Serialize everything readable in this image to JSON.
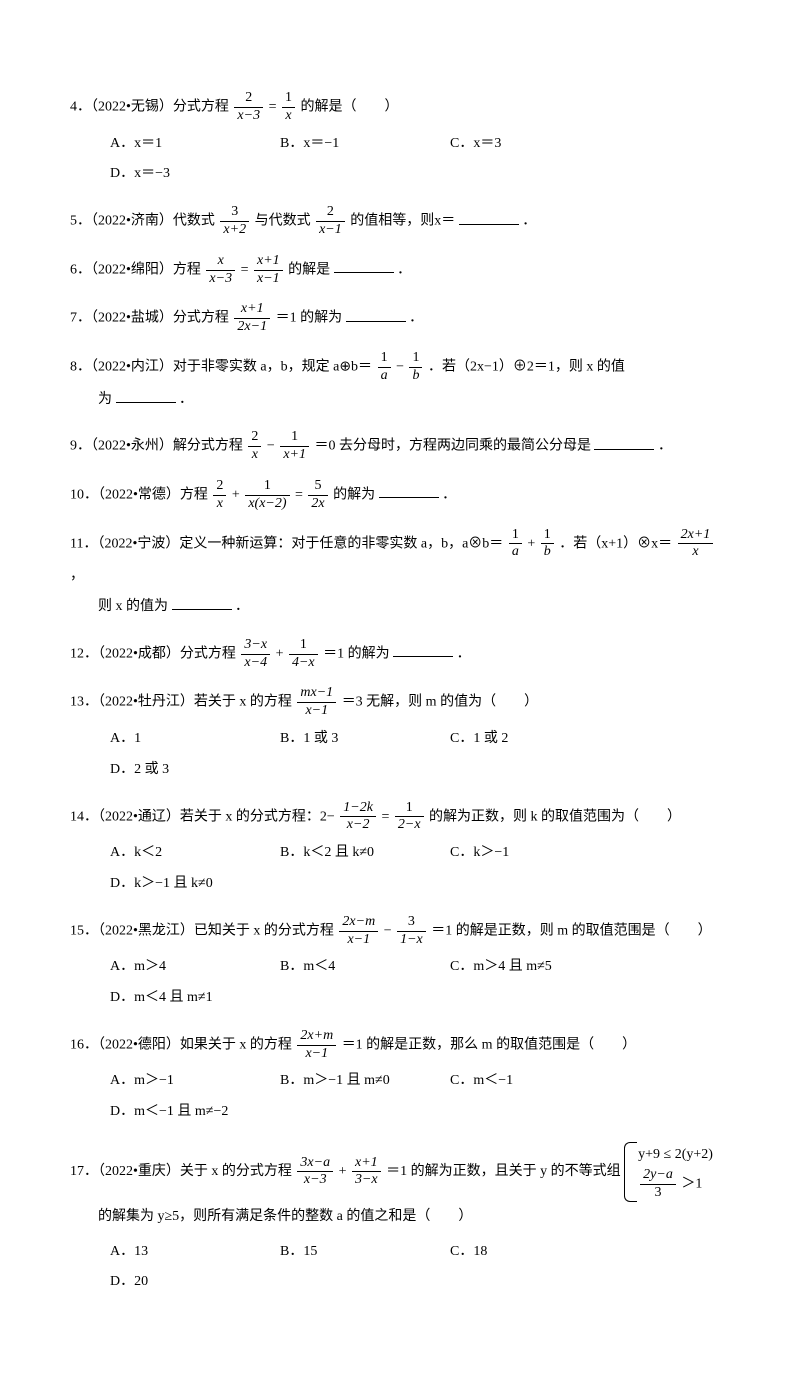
{
  "text_color": "#000000",
  "background_color": "#ffffff",
  "font_size_pt": 10.5,
  "questions": {
    "q4": {
      "prefix": "4．（2022•无锡）分式方程",
      "frac1_num": "2",
      "frac1_den": "x−3",
      "eq": "=",
      "frac2_num": "1",
      "frac2_den": "x",
      "suffix": "的解是（　　）",
      "A": "A．x＝1",
      "B": "B．x＝−1",
      "C": "C．x＝3",
      "D": "D．x＝−3"
    },
    "q5": {
      "prefix": "5．（2022•济南）代数式",
      "frac1_num": "3",
      "frac1_den": "x+2",
      "mid": "与代数式",
      "frac2_num": "2",
      "frac2_den": "x−1",
      "suffix": "的值相等，则x＝",
      "end": "．"
    },
    "q6": {
      "prefix": "6．（2022•绵阳）方程",
      "frac1_num": "x",
      "frac1_den": "x−3",
      "eq": "=",
      "frac2_num": "x+1",
      "frac2_den": "x−1",
      "suffix": "的解是",
      "end": "．"
    },
    "q7": {
      "prefix": "7．（2022•盐城）分式方程",
      "frac1_num": "x+1",
      "frac1_den": "2x−1",
      "suffix": "＝1 的解为",
      "end": "．"
    },
    "q8": {
      "prefix": "8．（2022•内江）对于非零实数 a，b，规定 a⊕b＝",
      "frac1_num": "1",
      "frac1_den": "a",
      "minus": "−",
      "frac2_num": "1",
      "frac2_den": "b",
      "suffix": "．若（2x−1）⊕2＝1，则 x 的值",
      "line2_prefix": "为",
      "end": "．"
    },
    "q9": {
      "prefix": "9．（2022•永州）解分式方程",
      "frac1_num": "2",
      "frac1_den": "x",
      "minus": "−",
      "frac2_num": "1",
      "frac2_den": "x+1",
      "suffix": "＝0 去分母时，方程两边同乘的最简公分母是",
      "end": "．"
    },
    "q10": {
      "prefix": "10．（2022•常德）方程",
      "frac1_num": "2",
      "frac1_den": "x",
      "plus": "+",
      "frac2_num": "1",
      "frac2_den": "x(x−2)",
      "eq": "=",
      "frac3_num": "5",
      "frac3_den": "2x",
      "suffix": "的解为",
      "end": "．"
    },
    "q11": {
      "prefix": "11．（2022•宁波）定义一种新运算：对于任意的非零实数 a，b，a⊗b＝",
      "frac1_num": "1",
      "frac1_den": "a",
      "plus": "+",
      "frac2_num": "1",
      "frac2_den": "b",
      "mid": "．若（x+1）⊗x＝",
      "frac3_num": "2x+1",
      "frac3_den": "x",
      "suffix": "，",
      "line2_prefix": "则 x 的值为",
      "end": "．"
    },
    "q12": {
      "prefix": "12．（2022•成都）分式方程",
      "frac1_num": "3−x",
      "frac1_den": "x−4",
      "plus": "+",
      "frac2_num": "1",
      "frac2_den": "4−x",
      "suffix": "＝1 的解为",
      "end": "．"
    },
    "q13": {
      "prefix": "13．（2022•牡丹江）若关于 x 的方程",
      "frac1_num": "mx−1",
      "frac1_den": "x−1",
      "suffix": "＝3 无解，则 m 的值为（　　）",
      "A": "A．1",
      "B": "B．1 或 3",
      "C": "C．1 或 2",
      "D": "D．2 或 3"
    },
    "q14": {
      "prefix": "14．（2022•通辽）若关于 x 的分式方程：2−",
      "frac1_num": "1−2k",
      "frac1_den": "x−2",
      "eq": "=",
      "frac2_num": "1",
      "frac2_den": "2−x",
      "suffix": "的解为正数，则 k 的取值范围为（　　）",
      "A": "A．k＜2",
      "B": "B．k＜2 且 k≠0",
      "C": "C．k＞−1",
      "D": "D．k＞−1 且 k≠0"
    },
    "q15": {
      "prefix": "15．（2022•黑龙江）已知关于 x 的分式方程",
      "frac1_num": "2x−m",
      "frac1_den": "x−1",
      "minus": "−",
      "frac2_num": "3",
      "frac2_den": "1−x",
      "suffix": "＝1 的解是正数，则 m 的取值范围是（　　）",
      "A": "A．m＞4",
      "B": "B．m＜4",
      "C": "C．m＞4 且 m≠5",
      "D": "D．m＜4 且 m≠1"
    },
    "q16": {
      "prefix": "16．（2022•德阳）如果关于 x 的方程",
      "frac1_num": "2x+m",
      "frac1_den": "x−1",
      "suffix": "＝1 的解是正数，那么 m 的取值范围是（　　）",
      "A": "A．m＞−1",
      "B": "B．m＞−1 且 m≠0",
      "C": "C．m＜−1",
      "D": "D．m＜−1 且 m≠−2"
    },
    "q17": {
      "prefix": "17．（2022•重庆）关于 x 的分式方程",
      "frac1_num": "3x−a",
      "frac1_den": "x−3",
      "plus": "+",
      "frac2_num": "x+1",
      "frac2_den": "3−x",
      "mid": "＝1 的解为正数，且关于 y 的不等式组",
      "brace_line1": "y+9 ≤ 2(y+2)",
      "brace_frac_num": "2y−a",
      "brace_frac_den": "3",
      "brace_gt": "＞1",
      "line2_prefix": "的解集为 y≥5，则所有满足条件的整数 a 的值之和是（　　）",
      "A": "A．13",
      "B": "B．15",
      "C": "C．18",
      "D": "D．20"
    }
  }
}
